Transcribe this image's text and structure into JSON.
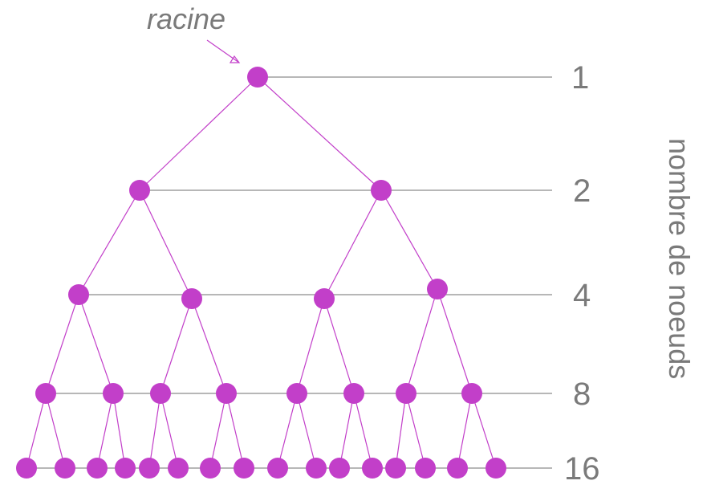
{
  "root_label": "racine",
  "axis_title": "nombre de noeuds",
  "levels": [
    {
      "count": "1"
    },
    {
      "count": "2"
    },
    {
      "count": "4"
    },
    {
      "count": "8"
    },
    {
      "count": "16"
    }
  ],
  "colors": {
    "node": "#c23fc9",
    "edge": "#c23fc9",
    "level_line": "#8c8c8c",
    "text": "#7a7a7a"
  }
}
